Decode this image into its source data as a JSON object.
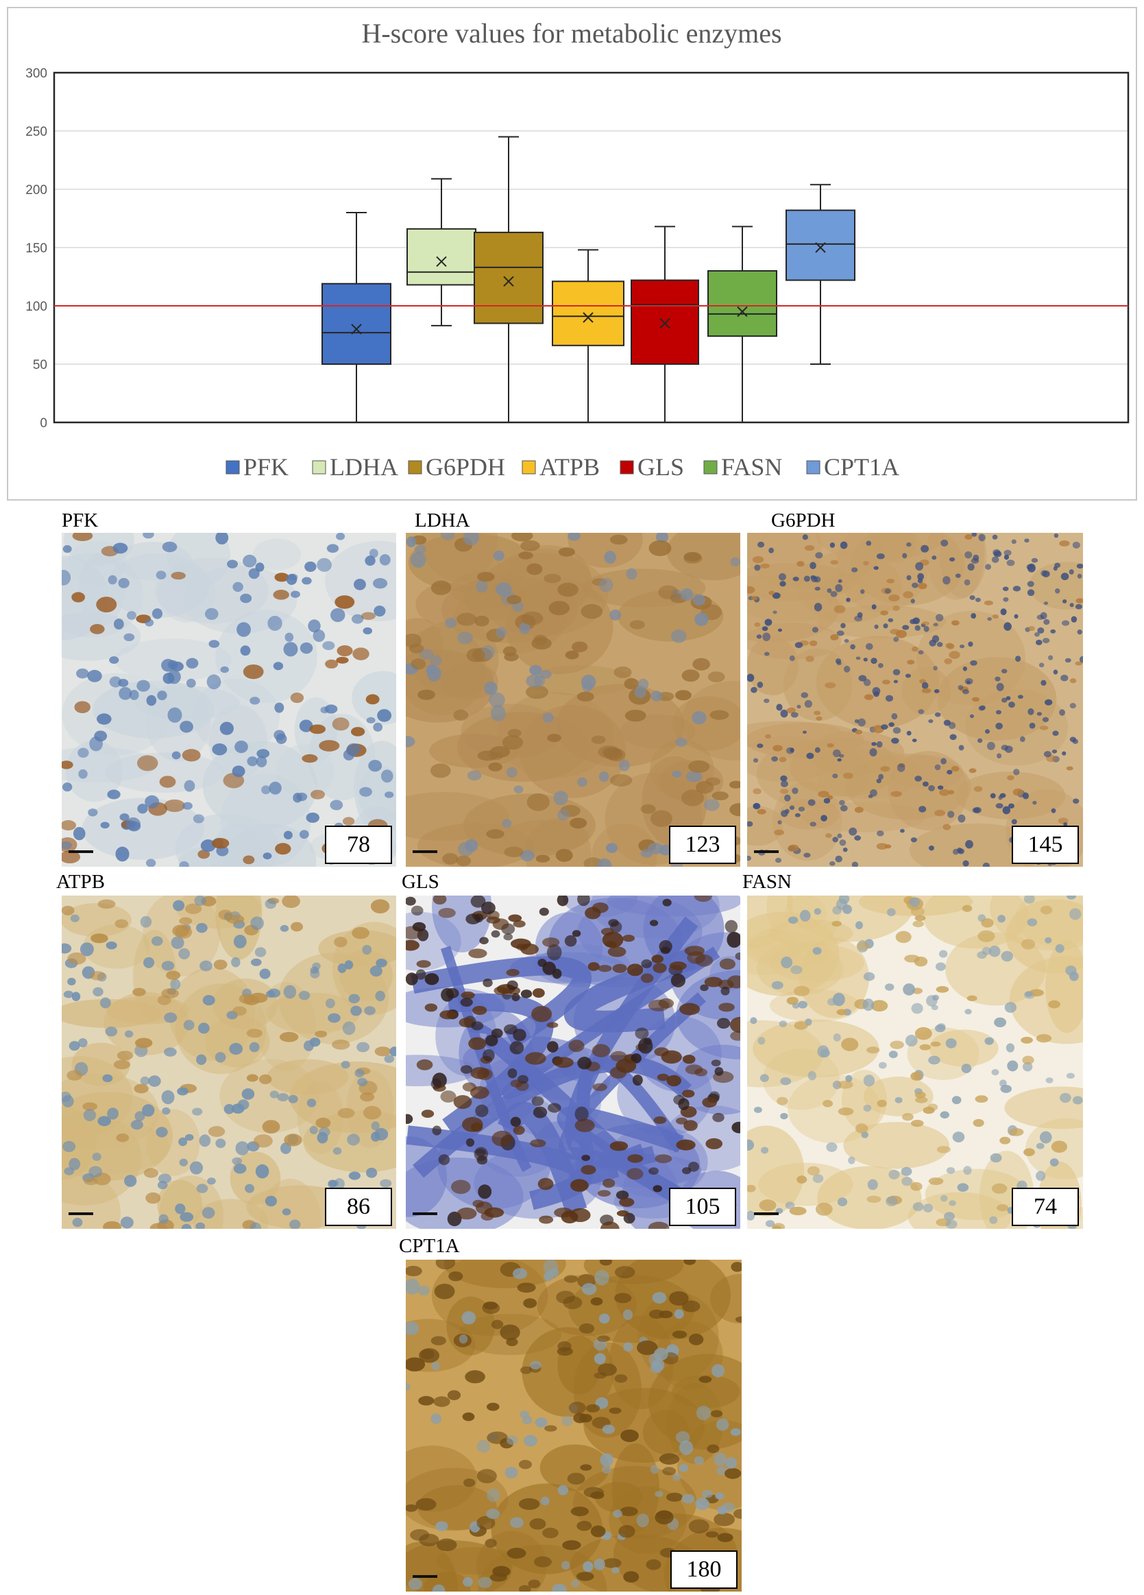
{
  "chart_data": {
    "type": "boxplot",
    "title": "H-score values for metabolic enzymes",
    "xlabel": "",
    "ylabel": "",
    "ylim": [
      0,
      300
    ],
    "yticks": [
      0,
      50,
      100,
      150,
      200,
      250,
      300
    ],
    "grid": true,
    "reference_line": {
      "y": 100,
      "color": "#d62728"
    },
    "legend_position": "bottom",
    "series": [
      {
        "name": "PFK",
        "color": "#4472c4",
        "min": 0,
        "q1": 50,
        "median": 77,
        "q3": 119,
        "max": 180,
        "mean": 80
      },
      {
        "name": "LDHA",
        "color": "#d7e8b8",
        "min": 83,
        "q1": 118,
        "median": 129,
        "q3": 166,
        "max": 209,
        "mean": 138
      },
      {
        "name": "G6PDH",
        "color": "#b08a1e",
        "min": 0,
        "q1": 85,
        "median": 133,
        "q3": 163,
        "max": 245,
        "mean": 121
      },
      {
        "name": "ATPB",
        "color": "#f7c024",
        "min": 0,
        "q1": 66,
        "median": 91,
        "q3": 121,
        "max": 148,
        "mean": 90
      },
      {
        "name": "GLS",
        "color": "#c00000",
        "min": 0,
        "q1": 50,
        "median": 101,
        "q3": 122,
        "max": 168,
        "mean": 85
      },
      {
        "name": "FASN",
        "color": "#70ad47",
        "min": 0,
        "q1": 74,
        "median": 93,
        "q3": 130,
        "max": 168,
        "mean": 95
      },
      {
        "name": "CPT1A",
        "color": "#6f9bd8",
        "min": 50,
        "q1": 122,
        "median": 153,
        "q3": 182,
        "max": 204,
        "mean": 150
      }
    ]
  },
  "panels": [
    {
      "label": "PFK",
      "score": "78",
      "stain": "pfk"
    },
    {
      "label": "LDHA",
      "score": "123",
      "stain": "ldha"
    },
    {
      "label": "G6PDH",
      "score": "145",
      "stain": "g6pdh"
    },
    {
      "label": "ATPB",
      "score": "86",
      "stain": "atpb"
    },
    {
      "label": "GLS",
      "score": "105",
      "stain": "gls"
    },
    {
      "label": "FASN",
      "score": "74",
      "stain": "fasn"
    },
    {
      "label": "CPT1A",
      "score": "180",
      "stain": "cpt1a"
    }
  ]
}
